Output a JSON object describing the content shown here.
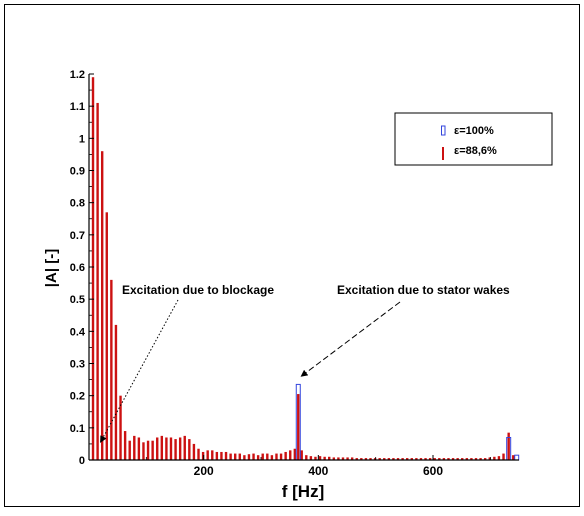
{
  "chart_data": {
    "type": "bar",
    "xlabel": "f [Hz]",
    "ylabel": "|A| [-]",
    "xlim": [
      0,
      750
    ],
    "ylim": [
      0,
      1.2
    ],
    "x_ticks": [
      200,
      400,
      600
    ],
    "x_tick_labels": [
      "200",
      "400",
      "600"
    ],
    "y_ticks": [
      0,
      0.1,
      0.2,
      0.3,
      0.4,
      0.5,
      0.6,
      0.7,
      0.8,
      0.9,
      1,
      1.1,
      1.2
    ],
    "y_tick_labels": [
      "0",
      "0.1",
      "0.2",
      "0.3",
      "0.4",
      "0.5",
      "0.6",
      "0.7",
      "0.8",
      "0.9",
      "1",
      "1.1",
      "1.2"
    ],
    "legend_position": "top-right",
    "series": [
      {
        "name": "ε=100%",
        "color": "#3344dd",
        "style": "outline",
        "x": [
          365,
          732,
          746
        ],
        "y": [
          0.235,
          0.07,
          0.015
        ]
      },
      {
        "name": "ε=88,6%",
        "color": "#cc1111",
        "style": "filled",
        "x": [
          7,
          15,
          23,
          31,
          39,
          47,
          55,
          63,
          71,
          79,
          87,
          95,
          103,
          111,
          119,
          127,
          135,
          143,
          151,
          159,
          167,
          175,
          183,
          191,
          199,
          207,
          215,
          223,
          231,
          239,
          247,
          255,
          263,
          271,
          279,
          287,
          295,
          303,
          311,
          319,
          327,
          335,
          343,
          351,
          359,
          365,
          371,
          379,
          387,
          395,
          403,
          411,
          419,
          427,
          435,
          443,
          451,
          459,
          467,
          475,
          483,
          491,
          499,
          507,
          515,
          523,
          531,
          539,
          547,
          555,
          563,
          571,
          579,
          587,
          595,
          603,
          611,
          619,
          627,
          635,
          643,
          651,
          659,
          667,
          675,
          683,
          691,
          699,
          707,
          715,
          723,
          732,
          740
        ],
        "y": [
          1.19,
          1.11,
          0.96,
          0.77,
          0.56,
          0.42,
          0.2,
          0.09,
          0.06,
          0.075,
          0.07,
          0.055,
          0.06,
          0.06,
          0.07,
          0.075,
          0.07,
          0.07,
          0.065,
          0.07,
          0.075,
          0.065,
          0.05,
          0.035,
          0.025,
          0.03,
          0.03,
          0.025,
          0.025,
          0.025,
          0.02,
          0.02,
          0.02,
          0.015,
          0.018,
          0.02,
          0.015,
          0.02,
          0.02,
          0.015,
          0.02,
          0.02,
          0.025,
          0.03,
          0.035,
          0.205,
          0.03,
          0.015,
          0.012,
          0.01,
          0.012,
          0.01,
          0.01,
          0.008,
          0.008,
          0.008,
          0.008,
          0.008,
          0.006,
          0.006,
          0.006,
          0.006,
          0.006,
          0.006,
          0.006,
          0.006,
          0.006,
          0.006,
          0.006,
          0.006,
          0.006,
          0.006,
          0.006,
          0.006,
          0.006,
          0.006,
          0.006,
          0.006,
          0.006,
          0.006,
          0.006,
          0.006,
          0.006,
          0.006,
          0.006,
          0.006,
          0.006,
          0.008,
          0.01,
          0.012,
          0.02,
          0.085,
          0.015
        ]
      }
    ],
    "annotations": [
      {
        "text": "Excitation due to blockage",
        "arrow_from": [
          20,
          0.055
        ],
        "arrow_from_style": "dotted"
      },
      {
        "text": "Excitation due to stator wakes",
        "arrow_from": [
          370,
          0.26
        ],
        "arrow_from_style": "dashed"
      }
    ]
  }
}
